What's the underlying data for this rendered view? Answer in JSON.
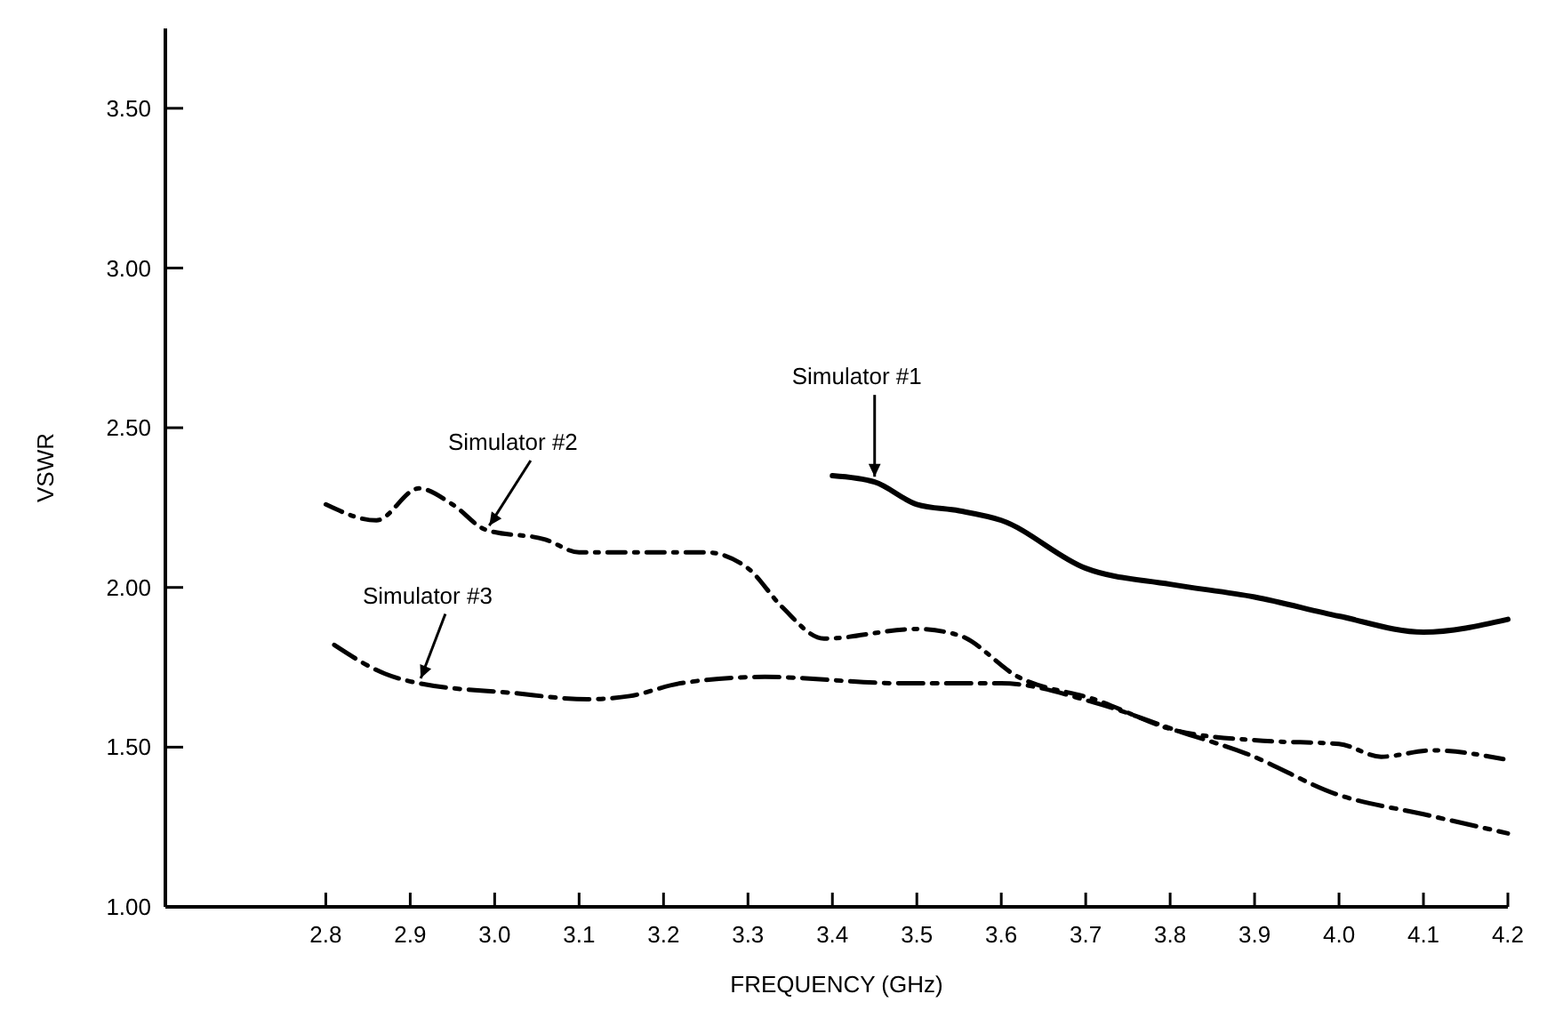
{
  "chart_data": {
    "type": "line",
    "xlabel": "FREQUENCY (GHz)",
    "ylabel": "VSWR",
    "xlim": [
      2.61,
      4.2
    ],
    "xticks": [
      2.8,
      2.9,
      {
        "value": 3.0,
        "label": "3.0"
      },
      3.1,
      3.2,
      3.3,
      3.4,
      3.5,
      3.6,
      3.7,
      3.8,
      3.9,
      {
        "value": 4.0,
        "label": "4.0"
      },
      4.1,
      4.2
    ],
    "ylim": [
      1.0,
      3.75
    ],
    "yticks": [
      {
        "value": 1.0,
        "label": "1.00"
      },
      {
        "value": 1.5,
        "label": "1.50"
      },
      {
        "value": 2.0,
        "label": "2.00"
      },
      {
        "value": 2.5,
        "label": "2.50"
      },
      {
        "value": 3.0,
        "label": "3.00"
      },
      {
        "value": 3.5,
        "label": "3.50"
      }
    ],
    "grid": false,
    "marker": "none",
    "series": [
      {
        "name": "Simulator #1",
        "color": "#000000",
        "line_style": "solid",
        "x": [
          3.4,
          3.45,
          3.5,
          3.55,
          3.6,
          3.7,
          3.8,
          3.9,
          4.0,
          4.1,
          4.2
        ],
        "values": [
          2.35,
          2.33,
          2.26,
          2.24,
          2.21,
          2.06,
          2.01,
          1.97,
          1.91,
          1.86,
          1.9
        ]
      },
      {
        "name": "Simulator #2",
        "color": "#000000",
        "line_style": "dashed",
        "x": [
          2.8,
          2.86,
          2.91,
          2.95,
          2.99,
          3.06,
          3.1,
          3.25,
          3.3,
          3.34,
          3.39,
          3.5,
          3.55,
          3.62,
          3.71,
          3.81,
          3.91,
          4.0,
          4.05,
          4.11,
          4.2
        ],
        "values": [
          2.26,
          2.21,
          2.31,
          2.26,
          2.18,
          2.15,
          2.11,
          2.11,
          2.06,
          1.94,
          1.84,
          1.87,
          1.85,
          1.72,
          1.65,
          1.55,
          1.52,
          1.51,
          1.47,
          1.49,
          1.46
        ]
      },
      {
        "name": "Simulator #3",
        "color": "#000000",
        "line_style": "dashed",
        "x": [
          2.81,
          2.87,
          2.91,
          3.02,
          3.11,
          3.16,
          3.22,
          3.32,
          3.48,
          3.6,
          3.71,
          3.81,
          3.89,
          4.0,
          4.1,
          4.2
        ],
        "values": [
          1.82,
          1.73,
          1.7,
          1.67,
          1.65,
          1.66,
          1.7,
          1.72,
          1.7,
          1.7,
          1.64,
          1.55,
          1.48,
          1.35,
          1.29,
          1.23
        ]
      }
    ]
  }
}
